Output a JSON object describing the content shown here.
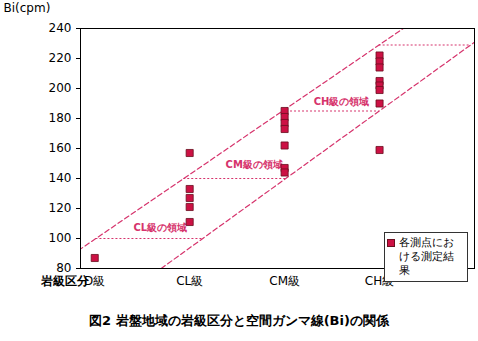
{
  "chart_data": {
    "type": "scatter",
    "title": "図2 岩盤地域の岩級区分と空間ガンマ線(Bi)の関係",
    "x_label": "岩級区分",
    "y_label": "Bi(cpm)",
    "xlim": [
      -0.15,
      4
    ],
    "xticks": [
      {
        "value": 0,
        "label": "D級"
      },
      {
        "value": 1,
        "label": "CL級"
      },
      {
        "value": 2,
        "label": "CM級"
      },
      {
        "value": 3,
        "label": "CH級"
      }
    ],
    "ylim": [
      80,
      240
    ],
    "yticks": [
      80,
      100,
      120,
      140,
      160,
      180,
      200,
      220,
      240
    ],
    "legend": "lower right",
    "series": [
      {
        "name": "各測点における測定結果",
        "color": "#cc1144",
        "marker": "square",
        "x": [
          0,
          1,
          1,
          1,
          1,
          1,
          2,
          2,
          2,
          2,
          2,
          2,
          2,
          3,
          3,
          3,
          3,
          3,
          3,
          3,
          3
        ],
        "values": [
          87,
          157,
          133,
          127,
          121,
          111,
          185,
          181,
          177,
          173,
          162,
          147,
          144,
          222,
          218,
          214,
          205,
          202,
          199,
          190,
          159
        ]
      }
    ],
    "band": {
      "color": "#d6336c",
      "line_style": "dashed",
      "upper": {
        "x": [
          -0.45,
          3.25
        ],
        "values": [
          80,
          240
        ]
      },
      "lower": {
        "x": [
          0.7,
          4.2
        ],
        "values": [
          80,
          240
        ]
      }
    },
    "boundaries": {
      "color": "#d6336c",
      "line_style": "dotted",
      "values": [
        100,
        140,
        185,
        229
      ]
    },
    "annotations": [
      {
        "text": "CL級の領域",
        "x": 0.69,
        "y": 107
      },
      {
        "text": "CM級の領域",
        "x": 1.68,
        "y": 149
      },
      {
        "text": "CH級の領域",
        "x": 2.6,
        "y": 191
      }
    ]
  }
}
